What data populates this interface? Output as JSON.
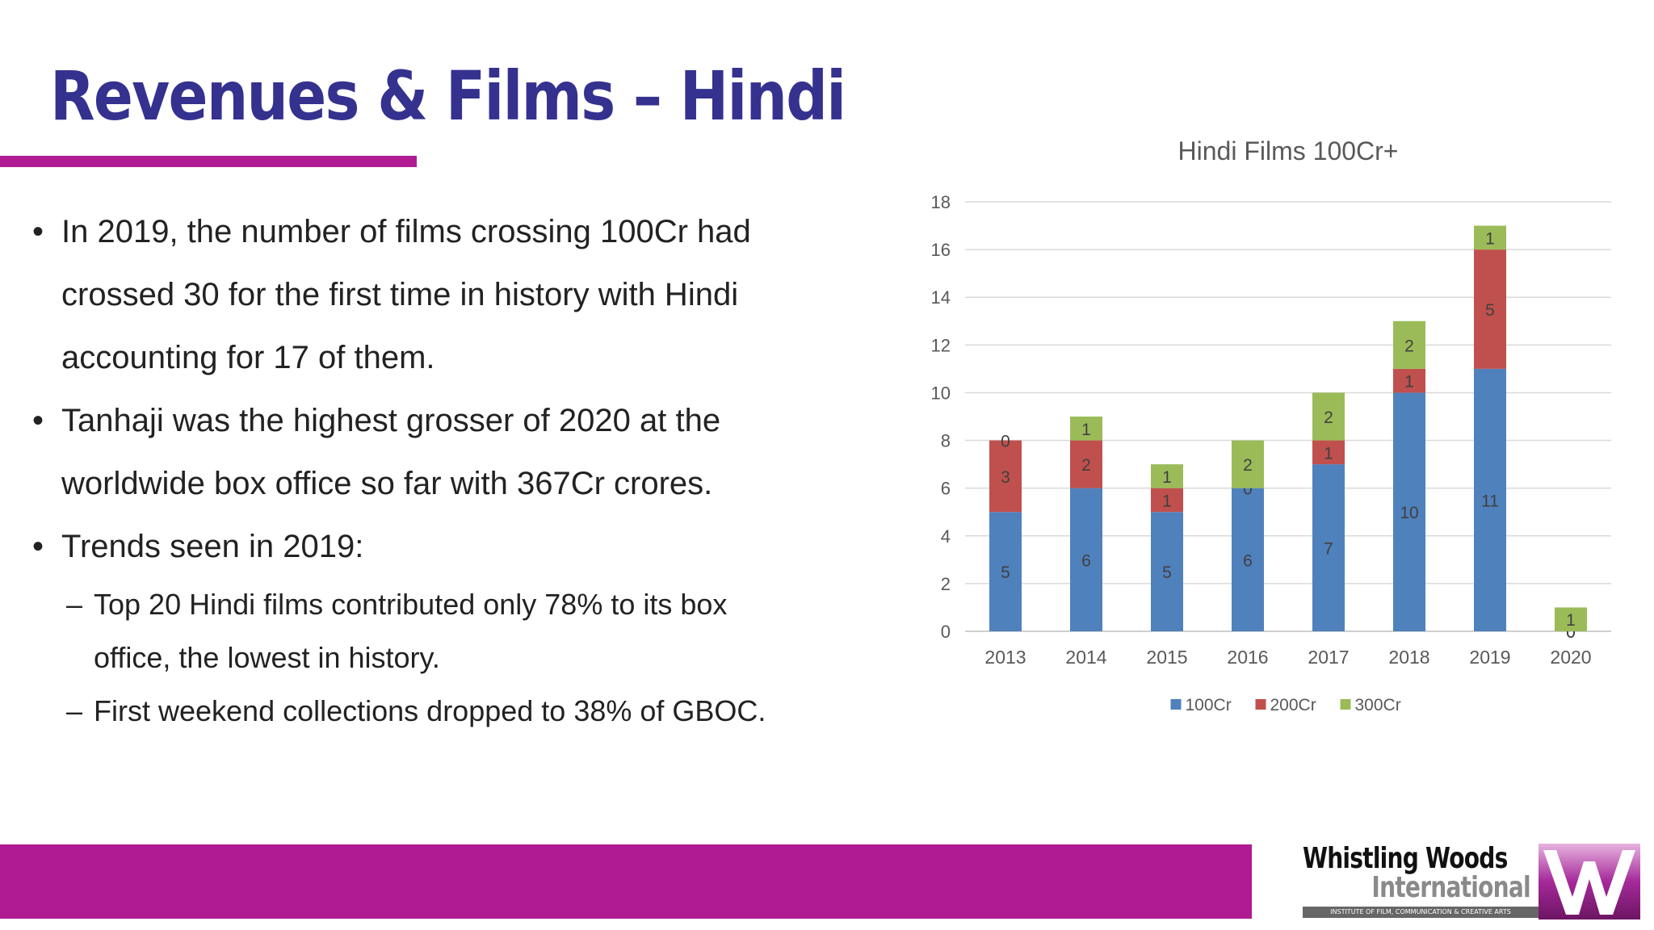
{
  "slide": {
    "title": "Revenues & Films – Hindi",
    "bullets": [
      {
        "level": 1,
        "text": "In 2019, the number of films crossing 100Cr had"
      },
      {
        "level": 0,
        "text": "crossed 30 for the first time in history with Hindi"
      },
      {
        "level": 0,
        "text": "accounting for 17 of them."
      },
      {
        "level": 1,
        "text": "Tanhaji was the highest grosser of 2020 at the"
      },
      {
        "level": 0,
        "text": "worldwide box office so far with 367Cr crores."
      },
      {
        "level": 1,
        "text": "Trends seen in 2019:"
      },
      {
        "level": 2,
        "text": "Top 20 Hindi films contributed only 78% to its box"
      },
      {
        "level": 3,
        "text": "office, the lowest in history."
      },
      {
        "level": 2,
        "text": "First weekend collections dropped to 38% of GBOC."
      }
    ]
  },
  "chart_data": {
    "type": "bar",
    "stacked": true,
    "title": "Hindi Films 100Cr+",
    "xlabel": "",
    "ylabel": "",
    "categories": [
      "2013",
      "2014",
      "2015",
      "2016",
      "2017",
      "2018",
      "2019",
      "2020"
    ],
    "series": [
      {
        "name": "100Cr",
        "values": [
          5,
          6,
          5,
          6,
          7,
          10,
          11,
          0
        ],
        "color": "#4f81bd"
      },
      {
        "name": "200Cr",
        "values": [
          3,
          2,
          1,
          0,
          1,
          1,
          5,
          0
        ],
        "color": "#c0504d"
      },
      {
        "name": "300Cr",
        "values": [
          0,
          1,
          1,
          2,
          2,
          2,
          1,
          1
        ],
        "color": "#9bbb59"
      }
    ],
    "ylim": [
      0,
      18
    ],
    "yticks": [
      0,
      2,
      4,
      6,
      8,
      10,
      12,
      14,
      16,
      18
    ],
    "grid": true,
    "legend": "bottom",
    "data_labels": true
  },
  "footer": {
    "bar_color": "#b01b93",
    "logo": {
      "line1": "Whistling Woods",
      "line2": "International",
      "tagline": "INSTITUTE OF FILM, COMMUNICATION & CREATIVE ARTS"
    }
  },
  "colors": {
    "title": "#35318f",
    "accent": "#b01b93"
  }
}
